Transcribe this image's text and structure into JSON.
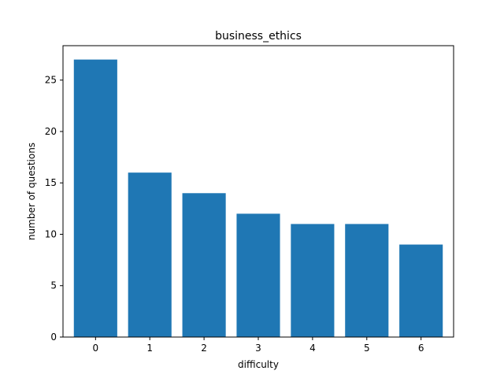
{
  "chart_data": {
    "type": "bar",
    "title": "business_ethics",
    "xlabel": "difficulty",
    "ylabel": "number of questions",
    "categories": [
      "0",
      "1",
      "2",
      "3",
      "4",
      "5",
      "6"
    ],
    "values": [
      27,
      16,
      14,
      12,
      11,
      11,
      9
    ],
    "xticks": [
      "0",
      "1",
      "2",
      "3",
      "4",
      "5",
      "6"
    ],
    "yticks": [
      "0",
      "5",
      "10",
      "15",
      "20",
      "25"
    ],
    "ylim": [
      0,
      28.35
    ],
    "bar_color": "#1f77b4",
    "grid": false
  }
}
